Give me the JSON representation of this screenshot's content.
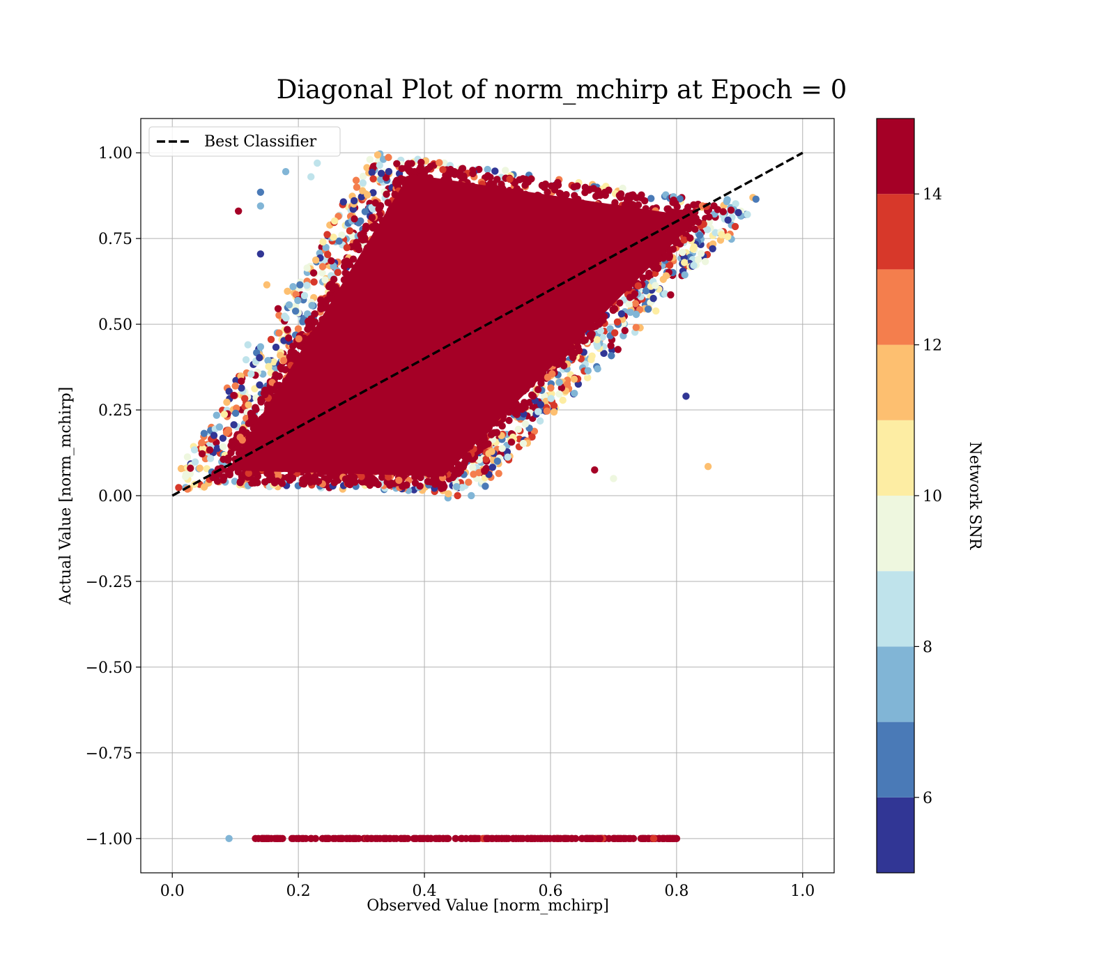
{
  "chart_data": {
    "type": "scatter",
    "title": "Diagonal Plot of norm_mchirp at Epoch = 0",
    "xlabel": "Observed Value [norm_mchirp]",
    "ylabel": "Actual Value [norm_mchirp]",
    "xlim": [
      -0.05,
      1.05
    ],
    "ylim": [
      -1.1,
      1.1
    ],
    "x_ticks": [
      0.0,
      0.2,
      0.4,
      0.6,
      0.8,
      1.0
    ],
    "x_tick_labels": [
      "0.0",
      "0.2",
      "0.4",
      "0.6",
      "0.8",
      "1.0"
    ],
    "y_ticks": [
      1.0,
      0.75,
      0.5,
      0.25,
      0.0,
      -0.25,
      -0.5,
      -0.75,
      -1.0
    ],
    "y_tick_labels": [
      "1.00",
      "0.75",
      "0.50",
      "0.25",
      "0.00",
      "−0.25",
      "−0.50",
      "−0.75",
      "−1.00"
    ],
    "grid": true,
    "legend": {
      "location": "upper-left",
      "entries": [
        {
          "label": "Best Classifier",
          "style": "dashed",
          "color": "#000000"
        }
      ]
    },
    "reference_line": {
      "label": "Best Classifier",
      "x": [
        0.0,
        1.0
      ],
      "y": [
        0.0,
        1.0
      ]
    },
    "scatter_region": {
      "description_of_shape": "parallelogram of points",
      "corners": [
        [
          0.05,
          0.03
        ],
        [
          0.43,
          0.01
        ],
        [
          0.88,
          0.85
        ],
        [
          0.37,
          0.99
        ]
      ],
      "dominant_color": "#a50026"
    },
    "scatter_row": {
      "y": -1.0,
      "x_range": [
        0.09,
        0.8
      ],
      "dominant_color": "#a50026"
    },
    "outlier_points": [
      [
        0.105,
        0.83,
        14.5
      ],
      [
        0.14,
        0.885,
        6.6
      ],
      [
        0.14,
        0.845,
        7.4
      ],
      [
        0.14,
        0.705,
        5.4
      ],
      [
        0.15,
        0.615,
        11.5
      ],
      [
        0.12,
        0.44,
        8.2
      ],
      [
        0.1,
        0.32,
        12.8
      ],
      [
        0.85,
        0.085,
        11.4
      ],
      [
        0.815,
        0.29,
        5.4
      ],
      [
        0.67,
        0.075,
        14.6
      ],
      [
        0.7,
        0.05,
        9.8
      ],
      [
        0.09,
        -1.0,
        7.6
      ],
      [
        0.18,
        0.945,
        7.4
      ],
      [
        0.22,
        0.93,
        8.4
      ],
      [
        0.23,
        0.97,
        8.6
      ],
      [
        0.125,
        0.355,
        8.8
      ]
    ],
    "colorbar": {
      "label": "Network SNR",
      "range": [
        5,
        15
      ],
      "ticks": [
        6,
        8,
        10,
        12,
        14
      ],
      "tick_labels": [
        "6",
        "8",
        "10",
        "12",
        "14"
      ],
      "bins": [
        {
          "from": 5,
          "to": 6,
          "color": "#313695"
        },
        {
          "from": 6,
          "to": 7,
          "color": "#4a7ab7"
        },
        {
          "from": 7,
          "to": 8,
          "color": "#81b5d6"
        },
        {
          "from": 8,
          "to": 9,
          "color": "#bfe3eb"
        },
        {
          "from": 9,
          "to": 10,
          "color": "#eef7df"
        },
        {
          "from": 10,
          "to": 11,
          "color": "#fdeda3"
        },
        {
          "from": 11,
          "to": 12,
          "color": "#fdbf70"
        },
        {
          "from": 12,
          "to": 13,
          "color": "#f47e4d"
        },
        {
          "from": 13,
          "to": 14,
          "color": "#d7382a"
        },
        {
          "from": 14,
          "to": 15,
          "color": "#a50026"
        }
      ]
    }
  }
}
